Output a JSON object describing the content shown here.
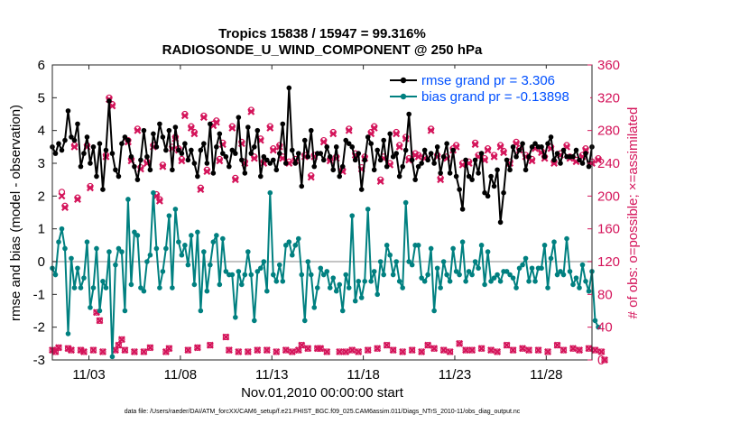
{
  "chart_data": {
    "type": "line",
    "title": "Tropics 15838 / 15947 = 99.316%",
    "subtitle": "RADIOSONDE_U_WIND_COMPONENT @ 250 hPa",
    "xlabel": "Nov.01,2010 00:00:00 start",
    "ylabel": "rmse and bias (model - observation)",
    "ylabel_right": "# of obs: o=possible; ×=assimilated",
    "footnote": "data file: /Users/raeder/DAI/ATM_forcXX/CAM6_setup/f.e21.FHIST_BGC.f09_025.CAM6assim.011/Diags_NTrS_2010-11/obs_diag_output.nc",
    "xlim": [
      1.0,
      30.5
    ],
    "ylim": [
      -3,
      6
    ],
    "ylim_right": [
      0,
      360
    ],
    "grid": false,
    "legend_position": "top-right",
    "x_ticks": [
      3,
      8,
      13,
      18,
      23,
      28
    ],
    "x_tick_labels": [
      "11/03",
      "11/08",
      "11/13",
      "11/18",
      "11/23",
      "11/28"
    ],
    "y_ticks": [
      -3,
      -2,
      -1,
      0,
      1,
      2,
      3,
      4,
      5,
      6
    ],
    "y_ticks_right": [
      0,
      40,
      80,
      120,
      160,
      200,
      240,
      280,
      320,
      360
    ],
    "colors": {
      "rmse": "#000000",
      "bias": "#008080",
      "obs": "#d4145a",
      "zero_line": "#b0b0b0",
      "legend_text": "#0050ff"
    },
    "series": [
      {
        "name": "rmse grand pr = 3.306",
        "axis": "left",
        "values": [
          3.5,
          3.3,
          3.6,
          3.4,
          3.7,
          4.6,
          3.8,
          3.7,
          4.2,
          2.9,
          3.3,
          3.8,
          3.0,
          3.5,
          2.6,
          3.6,
          2.2,
          3.4,
          4.9,
          3.3,
          2.8,
          2.6,
          3.6,
          3.8,
          3.7,
          3.2,
          2.9,
          2.5,
          3.1,
          4.0,
          3.2,
          2.8,
          3.9,
          3.5,
          4.2,
          3.8,
          3.4,
          4.0,
          2.8,
          4.1,
          3.4,
          3.3,
          3.6,
          3.1,
          3.4,
          3.0,
          2.6,
          3.4,
          3.6,
          3.0,
          4.2,
          2.7,
          3.5,
          3.9,
          3.3,
          3.2,
          2.9,
          3.4,
          3.3,
          4.4,
          3.1,
          2.7,
          4.1,
          3.3,
          3.5,
          4.0,
          2.6,
          3.2,
          3.1,
          3.0,
          3.1,
          2.8,
          3.3,
          4.2,
          3.0,
          5.3,
          3.4,
          3.0,
          3.3,
          2.3,
          3.7,
          3.2,
          4.0,
          2.9,
          3.3,
          3.3,
          3.1,
          3.5,
          3.2,
          2.8,
          3.5,
          2.6,
          2.9,
          3.7,
          3.6,
          3.5,
          3.1,
          3.3,
          2.2,
          3.1,
          3.8,
          3.6,
          2.8,
          3.4,
          3.1,
          3.7,
          2.9,
          3.9,
          3.2,
          3.3,
          2.6,
          2.9,
          3.4,
          4.5,
          3.1,
          2.5,
          2.9,
          3.0,
          3.4,
          3.1,
          3.3,
          3.0,
          3.5,
          2.7,
          3.2,
          3.6,
          2.7,
          3.4,
          2.6,
          2.2,
          1.6,
          3.1,
          2.6,
          2.5,
          3.1,
          2.7,
          3.3,
          2.1,
          2.0,
          2.6,
          2.3,
          2.8,
          1.2,
          2.1,
          3.1,
          2.8,
          3.5,
          3.2,
          3.4,
          3.6,
          2.8,
          3.2,
          3.5,
          3.6,
          3.5,
          3.5,
          3.2,
          3.6,
          3.8,
          3.1,
          3.3,
          3.0,
          3.4,
          3.2,
          3.2,
          3.2,
          3.4,
          3.1,
          3.0,
          3.3,
          2.9,
          3.5
        ]
      },
      {
        "name": "bias grand pr = -0.13898",
        "axis": "left",
        "values": [
          -0.2,
          -0.4,
          0.6,
          1.0,
          0.4,
          -2.2,
          0.1,
          -0.8,
          -0.2,
          -0.8,
          -0.5,
          0.6,
          -1.4,
          -0.8,
          0.4,
          -1.5,
          -0.6,
          -0.8,
          0.3,
          -2.9,
          -0.1,
          0.4,
          0.3,
          -1.5,
          1.9,
          -0.7,
          0.9,
          0.8,
          -0.8,
          -0.9,
          0.0,
          0.2,
          2.1,
          0.4,
          -0.8,
          -0.3,
          0.4,
          1.4,
          -0.8,
          1.6,
          0.6,
          0.2,
          0.5,
          -0.1,
          0.8,
          -0.7,
          0.9,
          -1.5,
          0.3,
          -0.9,
          -0.1,
          0.6,
          0.8,
          -0.7,
          0.7,
          -0.3,
          -0.4,
          -0.4,
          -1.7,
          -0.3,
          -0.7,
          -0.4,
          0.3,
          -0.4,
          -1.8,
          -0.3,
          -0.2,
          0.0,
          -0.9,
          2.1,
          -0.4,
          -0.6,
          -0.1,
          -0.6,
          0.5,
          0.6,
          0.2,
          0.5,
          0.7,
          -0.4,
          -1.8,
          0.0,
          -0.4,
          -1.4,
          -0.8,
          -0.2,
          -0.4,
          -0.3,
          -0.8,
          -0.5,
          -0.9,
          -0.7,
          -1.5,
          -0.4,
          -0.8,
          1.4,
          -1.2,
          -0.6,
          -1.1,
          -0.6,
          1.6,
          -0.6,
          -0.3,
          -1.0,
          0.0,
          -0.4,
          0.5,
          0.2,
          -0.4,
          0.0,
          -0.6,
          -0.8,
          1.8,
          0.0,
          -0.1,
          0.5,
          0.5,
          -0.5,
          -0.6,
          -0.4,
          0.4,
          -1.5,
          -0.2,
          -0.8,
          0.0,
          -0.4,
          -0.6,
          0.4,
          -0.3,
          -0.4,
          0.6,
          -0.6,
          -0.3,
          -0.4,
          0.0,
          -0.2,
          0.5,
          -0.7,
          0.3,
          -0.6,
          -0.5,
          -0.4,
          -0.6,
          -0.3,
          -0.3,
          -0.4,
          -0.5,
          -0.8,
          -0.2,
          -0.1,
          0.1,
          -0.6,
          -0.2,
          -0.6,
          -0.2,
          -0.2,
          0.5,
          -0.8,
          0.1,
          0.6,
          -0.4,
          -0.3,
          -0.4,
          0.7,
          -0.3,
          -0.7,
          -0.5,
          -0.8,
          -0.1,
          -0.6,
          -0.9,
          -0.3,
          -1.8,
          -2.0
        ]
      }
    ],
    "obs": {
      "axis": "right",
      "possible": [
        12,
        10,
        15,
        205,
        188,
        14,
        12,
        262,
        198,
        12,
        10,
        262,
        212,
        12,
        58,
        48,
        10,
        250,
        320,
        312,
        12,
        18,
        25,
        12,
        268,
        245,
        10,
        282,
        235,
        10,
        242,
        15,
        262,
        202,
        196,
        238,
        10,
        14,
        260,
        272,
        258,
        245,
        300,
        12,
        285,
        278,
        15,
        210,
        298,
        232,
        18,
        288,
        292,
        245,
        265,
        28,
        12,
        285,
        222,
        10,
        266,
        242,
        10,
        305,
        248,
        12,
        270,
        242,
        12,
        285,
        258,
        10,
        262,
        248,
        12,
        242,
        10,
        245,
        12,
        18,
        250,
        14,
        225,
        250,
        14,
        14,
        268,
        10,
        245,
        278,
        248,
        10,
        232,
        10,
        282,
        12,
        252,
        10,
        235,
        248,
        12,
        278,
        285,
        14,
        220,
        248,
        18,
        240,
        12,
        278,
        262,
        10,
        272,
        246,
        12,
        252,
        250,
        10,
        248,
        18,
        282,
        14,
        250,
        222,
        12,
        248,
        10,
        258,
        262,
        20,
        240,
        12,
        242,
        12,
        265,
        250,
        14,
        246,
        258,
        12,
        250,
        10,
        262,
        255,
        18,
        242,
        12,
        266,
        258,
        14,
        250,
        12,
        245,
        260,
        12,
        255,
        248,
        10,
        260,
        242,
        18,
        252,
        12,
        262,
        248,
        14,
        244,
        12,
        250,
        258,
        14,
        242,
        12,
        246,
        10,
        0
      ],
      "assimilated": [
        12,
        10,
        15,
        200,
        186,
        14,
        12,
        260,
        196,
        12,
        10,
        260,
        210,
        12,
        58,
        48,
        10,
        248,
        318,
        310,
        12,
        18,
        25,
        12,
        266,
        243,
        10,
        280,
        233,
        10,
        240,
        15,
        260,
        200,
        194,
        236,
        10,
        14,
        258,
        270,
        256,
        243,
        298,
        12,
        283,
        276,
        15,
        208,
        296,
        230,
        18,
        286,
        290,
        243,
        263,
        28,
        12,
        283,
        220,
        10,
        264,
        240,
        10,
        303,
        246,
        12,
        268,
        240,
        12,
        283,
        256,
        10,
        260,
        246,
        12,
        240,
        10,
        243,
        12,
        18,
        248,
        14,
        223,
        248,
        14,
        14,
        266,
        10,
        243,
        276,
        246,
        10,
        230,
        10,
        280,
        12,
        250,
        10,
        233,
        246,
        12,
        276,
        283,
        14,
        218,
        246,
        18,
        238,
        12,
        276,
        260,
        10,
        270,
        244,
        12,
        250,
        248,
        10,
        246,
        18,
        280,
        14,
        248,
        220,
        12,
        246,
        10,
        256,
        260,
        20,
        238,
        12,
        240,
        12,
        263,
        248,
        14,
        244,
        256,
        12,
        248,
        10,
        260,
        253,
        18,
        240,
        12,
        264,
        256,
        14,
        248,
        12,
        243,
        258,
        12,
        253,
        246,
        10,
        258,
        240,
        18,
        250,
        12,
        260,
        246,
        14,
        242,
        12,
        248,
        256,
        14,
        240,
        12,
        244,
        10,
        0
      ]
    }
  }
}
